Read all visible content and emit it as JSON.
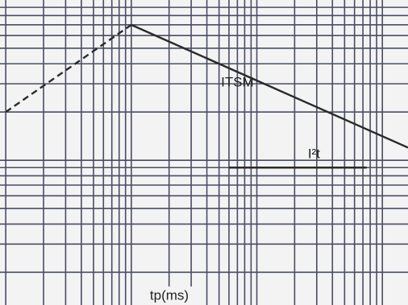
{
  "chart_data": {
    "type": "line",
    "x_label": "tp(ms)",
    "xscale": "log",
    "yscale": "log",
    "grid": true,
    "grid_color": "#4a4c66",
    "xlim": [
      0.09,
      160
    ],
    "ylim": [
      1.25,
      100
    ],
    "xticks": [
      0.1,
      0.2,
      0.3,
      0.4,
      0.5,
      0.6,
      0.7,
      0.8,
      0.9,
      1,
      2,
      3,
      4,
      5,
      6,
      7,
      8,
      9,
      10,
      20,
      30,
      40,
      50,
      60,
      70,
      80,
      90,
      100
    ],
    "yticks": [
      2,
      3,
      4,
      5,
      6,
      7,
      8,
      9,
      10,
      20,
      30,
      40,
      50,
      60,
      70,
      80,
      90
    ],
    "series": [
      {
        "color": "#2a2a2a",
        "dashed": true,
        "x": [
          0.1,
          1
        ],
        "values": [
          20,
          70
        ]
      },
      {
        "name": "ITSM",
        "color": "#2a2a2a",
        "x": [
          1,
          160
        ],
        "values": [
          70,
          12
        ]
      },
      {
        "name": "I²t",
        "color": "#2a2a2a",
        "x": [
          6,
          75
        ],
        "values": [
          9,
          9
        ]
      }
    ]
  }
}
